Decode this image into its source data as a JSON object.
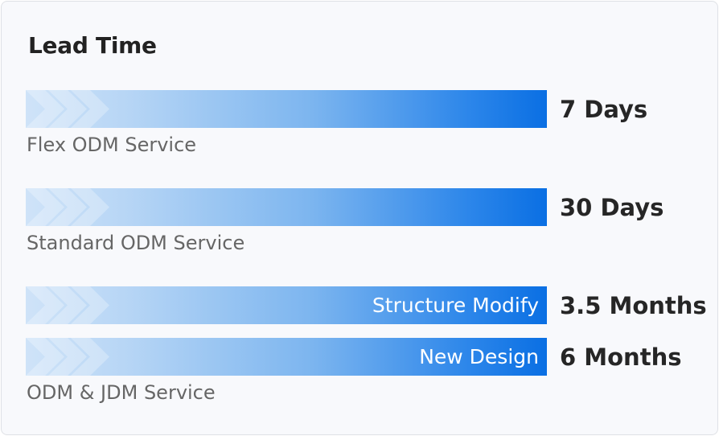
{
  "title": "Lead Time",
  "colors": {
    "bar_start": "#cfe3f8",
    "bar_end": "#0a6fe3"
  },
  "rows": [
    {
      "value": "7 Days",
      "label": "Flex ODM Service"
    },
    {
      "value": "30 Days",
      "label": "Standard ODM Service"
    },
    {
      "value": "3.5 Months",
      "bar_text": "Structure Modify"
    },
    {
      "value": "6 Months",
      "bar_text": "New Design",
      "label": "ODM & JDM Service"
    }
  ]
}
